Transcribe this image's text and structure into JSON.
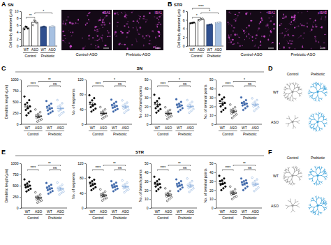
{
  "chart_data": [
    {
      "type": "bar",
      "panel_label": "A",
      "title": "SN",
      "y_label": "Cell body diameter (μm)",
      "categories": [
        "WT",
        "ASO",
        "WT",
        "ASO"
      ],
      "group_labels": [
        "Control",
        "Prebiotic"
      ],
      "colors": [
        "#ffffff",
        "#ffffff",
        "#2f4f8f",
        "#a7c1e2"
      ],
      "values": [
        5.2,
        6.8,
        5.5,
        5.6
      ],
      "errors": [
        0.3,
        0.5,
        0.1,
        0.1
      ],
      "points": [
        [
          4.8,
          5.0,
          5.5,
          5.6
        ],
        [
          6.0,
          6.6,
          7.2,
          7.4
        ],
        [
          5.4,
          5.5,
          5.6,
          5.5
        ],
        [
          5.5,
          5.6,
          5.7,
          5.6
        ]
      ],
      "ylim": [
        0,
        10
      ],
      "yticks": [
        0,
        2,
        4,
        6,
        8,
        10
      ],
      "comparisons": [
        {
          "label": "**",
          "pair": [
            0,
            1
          ]
        },
        {
          "label": "*",
          "pair": [
            1,
            3
          ]
        }
      ]
    },
    {
      "type": "bar",
      "panel_label": "B",
      "title": "STR",
      "y_label": "Cell body diameter (μm)",
      "categories": [
        "WT",
        "ASO",
        "WT",
        "ASO"
      ],
      "group_labels": [
        "Control",
        "Prebiotic"
      ],
      "colors": [
        "#ffffff",
        "#ffffff",
        "#2f4f8f",
        "#a7c1e2"
      ],
      "values": [
        5.3,
        6.1,
        4.9,
        5.4
      ],
      "errors": [
        0.1,
        0.15,
        0.1,
        0.1
      ],
      "points": [
        [
          5.2,
          5.3,
          5.4
        ],
        [
          5.9,
          6.1,
          6.3
        ],
        [
          4.8,
          4.9,
          5.0
        ],
        [
          5.3,
          5.4,
          5.5
        ]
      ],
      "ylim": [
        0,
        8
      ],
      "yticks": [
        0,
        2,
        4,
        6,
        8
      ],
      "comparisons": [
        {
          "label": "*",
          "pair": [
            0,
            1
          ]
        },
        {
          "label": "*",
          "pair": [
            1,
            3
          ]
        },
        {
          "label": "****",
          "pair": [
            0,
            2
          ]
        }
      ]
    },
    {
      "type": "dot",
      "y_label": "Dendritic length (μm)",
      "categories": [
        "WT",
        "ASO",
        "WT",
        "ASO"
      ],
      "group_labels": [
        "Control",
        "Prebiotic"
      ],
      "colors": [
        "#000000",
        "#000000",
        "#3a64a8",
        "#7fa6d8"
      ],
      "values": [
        390,
        177,
        358,
        352
      ],
      "errors": [
        40,
        26,
        28,
        32
      ],
      "points": [
        [
          620,
          540,
          480,
          440,
          400,
          360,
          320,
          290,
          250,
          200
        ],
        [
          330,
          270,
          230,
          200,
          180,
          160,
          140,
          110,
          90,
          60
        ],
        [
          520,
          460,
          420,
          390,
          360,
          340,
          310,
          290,
          260,
          230
        ],
        [
          540,
          470,
          420,
          390,
          360,
          330,
          300,
          270,
          240,
          200
        ]
      ],
      "ylim": [
        0,
        1000
      ],
      "yticks": [
        0,
        250,
        500,
        750,
        1000
      ],
      "comparisons": [
        {
          "label": "****",
          "pair": [
            0,
            1
          ]
        },
        {
          "label": "ns",
          "pair": [
            2,
            3
          ]
        },
        {
          "label": "**",
          "pair": [
            1,
            3
          ]
        }
      ]
    },
    {
      "type": "dot",
      "y_label": "No. of segments",
      "categories": [
        "WT",
        "ASO",
        "WT",
        "ASO"
      ],
      "group_labels": [
        "Control",
        "Prebiotic"
      ],
      "colors": [
        "#000000",
        "#000000",
        "#3a64a8",
        "#7fa6d8"
      ],
      "values": [
        53,
        29,
        49,
        47
      ],
      "errors": [
        4.4,
        3,
        3,
        3.2
      ],
      "points": [
        [
          78,
          70,
          64,
          58,
          54,
          50,
          46,
          42,
          38,
          34
        ],
        [
          46,
          40,
          36,
          32,
          30,
          28,
          25,
          22,
          19,
          15
        ],
        [
          66,
          60,
          56,
          52,
          49,
          46,
          44,
          41,
          38,
          34
        ],
        [
          64,
          58,
          54,
          50,
          47,
          44,
          42,
          39,
          36,
          31
        ]
      ],
      "ylim": [
        0,
        120
      ],
      "yticks": [
        0,
        40,
        80,
        120
      ],
      "comparisons": [
        {
          "label": "****",
          "pair": [
            0,
            1
          ]
        },
        {
          "label": "ns",
          "pair": [
            2,
            3
          ]
        },
        {
          "label": "*",
          "pair": [
            1,
            3
          ]
        }
      ]
    },
    {
      "type": "dot",
      "y_label": "No. of branch points",
      "categories": [
        "WT",
        "ASO",
        "WT",
        "ASO"
      ],
      "group_labels": [
        "Control",
        "Prebiotic"
      ],
      "colors": [
        "#000000",
        "#000000",
        "#3a64a8",
        "#7fa6d8"
      ],
      "values": [
        22,
        12,
        21,
        20
      ],
      "errors": [
        2,
        1.2,
        1.3,
        1.4
      ],
      "points": [
        [
          33,
          29,
          26,
          24,
          22,
          20,
          18,
          17,
          15,
          13
        ],
        [
          19,
          16,
          15,
          13,
          12,
          11,
          10,
          9,
          8,
          6
        ],
        [
          28,
          25,
          23,
          22,
          21,
          20,
          19,
          18,
          16,
          14
        ],
        [
          27,
          25,
          23,
          21,
          20,
          19,
          18,
          17,
          15,
          13
        ]
      ],
      "ylim": [
        0,
        50
      ],
      "yticks": [
        0,
        10,
        20,
        30,
        40,
        50
      ],
      "comparisons": [
        {
          "label": "****",
          "pair": [
            0,
            1
          ]
        },
        {
          "label": "ns",
          "pair": [
            2,
            3
          ]
        },
        {
          "label": "*",
          "pair": [
            1,
            3
          ]
        }
      ]
    },
    {
      "type": "dot",
      "y_label": "No. of terminal points",
      "categories": [
        "WT",
        "ASO",
        "WT",
        "ASO"
      ],
      "group_labels": [
        "Control",
        "Prebiotic"
      ],
      "colors": [
        "#000000",
        "#000000",
        "#3a64a8",
        "#7fa6d8"
      ],
      "values": [
        23,
        14,
        23,
        22
      ],
      "errors": [
        2,
        1.4,
        1.3,
        1.4
      ],
      "points": [
        [
          33,
          30,
          28,
          26,
          24,
          22,
          20,
          18,
          16,
          14
        ],
        [
          22,
          19,
          17,
          16,
          15,
          14,
          12,
          11,
          9,
          7
        ],
        [
          30,
          27,
          25,
          24,
          23,
          22,
          21,
          20,
          18,
          16
        ],
        [
          29,
          27,
          25,
          23,
          22,
          21,
          20,
          19,
          17,
          15
        ]
      ],
      "ylim": [
        0,
        50
      ],
      "yticks": [
        0,
        10,
        20,
        30,
        40,
        50
      ],
      "comparisons": [
        {
          "label": "****",
          "pair": [
            0,
            1
          ]
        },
        {
          "label": "ns",
          "pair": [
            2,
            3
          ]
        },
        {
          "label": "*",
          "pair": [
            1,
            3
          ]
        }
      ]
    },
    {
      "type": "dot",
      "y_label": "Dendritic length (μm)",
      "categories": [
        "WT",
        "ASO",
        "WT",
        "ASO"
      ],
      "group_labels": [
        "Control",
        "Prebiotic"
      ],
      "colors": [
        "#000000",
        "#000000",
        "#3a64a8",
        "#7fa6d8"
      ],
      "values": [
        494,
        224,
        434,
        426
      ],
      "errors": [
        26,
        22,
        23,
        25
      ],
      "points": [
        [
          640,
          590,
          550,
          520,
          500,
          480,
          460,
          430,
          400,
          370
        ],
        [
          350,
          300,
          270,
          250,
          230,
          210,
          190,
          170,
          150,
          120
        ],
        [
          560,
          520,
          490,
          460,
          440,
          420,
          400,
          380,
          350,
          320
        ],
        [
          570,
          520,
          480,
          450,
          430,
          410,
          390,
          370,
          340,
          300
        ]
      ],
      "ylim": [
        0,
        1000
      ],
      "yticks": [
        0,
        250,
        500,
        750,
        1000
      ],
      "comparisons": [
        {
          "label": "****",
          "pair": [
            0,
            1
          ]
        },
        {
          "label": "ns",
          "pair": [
            2,
            3
          ]
        },
        {
          "label": "**",
          "pair": [
            1,
            3
          ]
        }
      ]
    },
    {
      "type": "dot",
      "y_label": "No. of segments",
      "categories": [
        "WT",
        "ASO",
        "WT",
        "ASO"
      ],
      "group_labels": [
        "Control",
        "Prebiotic"
      ],
      "colors": [
        "#000000",
        "#000000",
        "#3a64a8",
        "#7fa6d8"
      ],
      "values": [
        64,
        34,
        58,
        57
      ],
      "errors": [
        3.3,
        2.8,
        2.5,
        2.9
      ],
      "points": [
        [
          82,
          76,
          72,
          68,
          65,
          62,
          59,
          56,
          52,
          48
        ],
        [
          50,
          44,
          40,
          37,
          34,
          32,
          30,
          27,
          24,
          20
        ],
        [
          72,
          68,
          64,
          61,
          59,
          57,
          55,
          52,
          49,
          45
        ],
        [
          74,
          68,
          64,
          60,
          57,
          55,
          53,
          50,
          47,
          42
        ]
      ],
      "ylim": [
        0,
        120
      ],
      "yticks": [
        0,
        40,
        80,
        120
      ],
      "comparisons": [
        {
          "label": "****",
          "pair": [
            0,
            1
          ]
        },
        {
          "label": "ns",
          "pair": [
            2,
            3
          ]
        },
        {
          "label": "**",
          "pair": [
            1,
            3
          ]
        }
      ]
    },
    {
      "type": "dot",
      "y_label": "No. of branch points",
      "categories": [
        "WT",
        "ASO",
        "WT",
        "ASO"
      ],
      "group_labels": [
        "Control",
        "Prebiotic"
      ],
      "colors": [
        "#000000",
        "#000000",
        "#3a64a8",
        "#7fa6d8"
      ],
      "values": [
        26.5,
        14.6,
        25.5,
        24.9
      ],
      "errors": [
        1.5,
        1.3,
        1.2,
        1.4
      ],
      "points": [
        [
          35,
          32,
          30,
          28,
          27,
          26,
          24,
          23,
          21,
          19
        ],
        [
          22,
          19,
          17,
          16,
          15,
          14,
          13,
          12,
          10,
          8
        ],
        [
          32,
          30,
          28,
          27,
          26,
          25,
          24,
          23,
          21,
          19
        ],
        [
          33,
          30,
          28,
          26,
          25,
          24,
          23,
          22,
          20,
          18
        ]
      ],
      "ylim": [
        0,
        50
      ],
      "yticks": [
        0,
        10,
        20,
        30,
        40,
        50
      ],
      "comparisons": [
        {
          "label": "****",
          "pair": [
            0,
            1
          ]
        },
        {
          "label": "ns",
          "pair": [
            2,
            3
          ]
        },
        {
          "label": "**",
          "pair": [
            1,
            3
          ]
        }
      ]
    },
    {
      "type": "dot",
      "y_label": "No. of terminal points",
      "categories": [
        "WT",
        "ASO",
        "WT",
        "ASO"
      ],
      "group_labels": [
        "Control",
        "Prebiotic"
      ],
      "colors": [
        "#000000",
        "#000000",
        "#3a64a8",
        "#7fa6d8"
      ],
      "values": [
        27.7,
        16.5,
        27,
        26.5
      ],
      "errors": [
        1.5,
        1.3,
        1.3,
        1.5
      ],
      "points": [
        [
          36,
          33,
          31,
          30,
          28,
          27,
          26,
          24,
          22,
          20
        ],
        [
          24,
          21,
          19,
          18,
          17,
          16,
          15,
          13,
          12,
          10
        ],
        [
          33,
          31,
          30,
          29,
          28,
          27,
          26,
          24,
          22,
          20
        ],
        [
          34,
          32,
          30,
          28,
          27,
          26,
          25,
          23,
          21,
          19
        ]
      ],
      "ylim": [
        0,
        50
      ],
      "yticks": [
        0,
        10,
        20,
        30,
        40,
        50
      ],
      "comparisons": [
        {
          "label": "****",
          "pair": [
            0,
            1
          ]
        },
        {
          "label": "ns",
          "pair": [
            2,
            3
          ]
        },
        {
          "label": "**",
          "pair": [
            1,
            3
          ]
        }
      ]
    }
  ],
  "rows": [
    {
      "panel_label": "C",
      "title": "SN"
    },
    {
      "panel_label": "E",
      "title": "STR"
    }
  ],
  "micrographs": [
    {
      "stain": "IBA1",
      "captions": [
        "Control-ASO",
        "Prebiotic-ASO"
      ]
    },
    {
      "stain": "IBA1",
      "captions": [
        "Control-ASO",
        "Prebiotic-ASO"
      ]
    }
  ],
  "tracings": [
    {
      "panel_label": "D",
      "columns": [
        "Control",
        "Prebiotic"
      ],
      "rows": [
        "WT",
        "ASO"
      ]
    },
    {
      "panel_label": "F",
      "columns": [
        "Control",
        "Prebiotic"
      ],
      "rows": [
        "WT",
        "ASO"
      ]
    }
  ]
}
